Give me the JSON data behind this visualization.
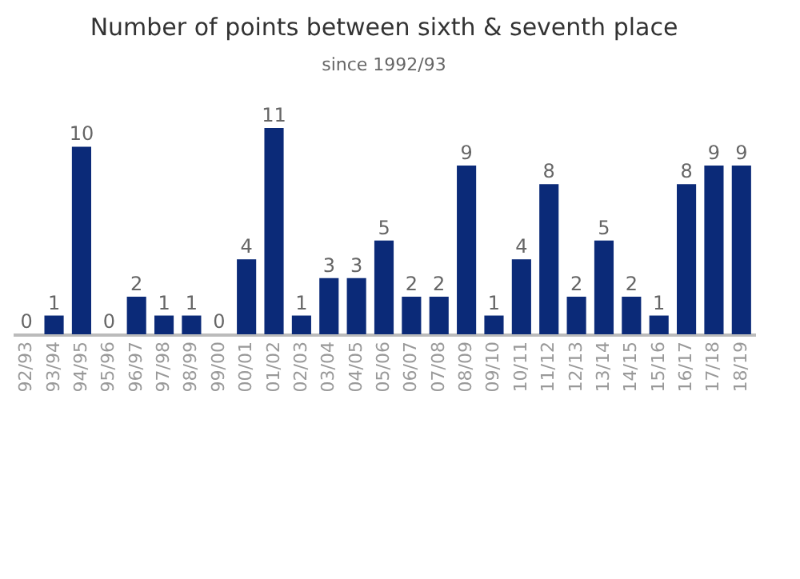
{
  "chart_data": {
    "type": "bar",
    "title": "Number of points between sixth & seventh place",
    "subtitle": "since 1992/93",
    "categories": [
      "92/93",
      "93/94",
      "94/95",
      "95/96",
      "96/97",
      "97/98",
      "98/99",
      "99/00",
      "00/01",
      "01/02",
      "02/03",
      "03/04",
      "04/05",
      "05/06",
      "06/07",
      "07/08",
      "08/09",
      "09/10",
      "10/11",
      "11/12",
      "12/13",
      "13/14",
      "14/15",
      "15/16",
      "16/17",
      "17/18",
      "18/19"
    ],
    "values": [
      0,
      1,
      10,
      0,
      2,
      1,
      1,
      0,
      4,
      11,
      1,
      3,
      3,
      5,
      2,
      2,
      9,
      1,
      4,
      8,
      2,
      5,
      2,
      1,
      8,
      9,
      9
    ],
    "color": "#0b2a78",
    "data_labels": true
  }
}
